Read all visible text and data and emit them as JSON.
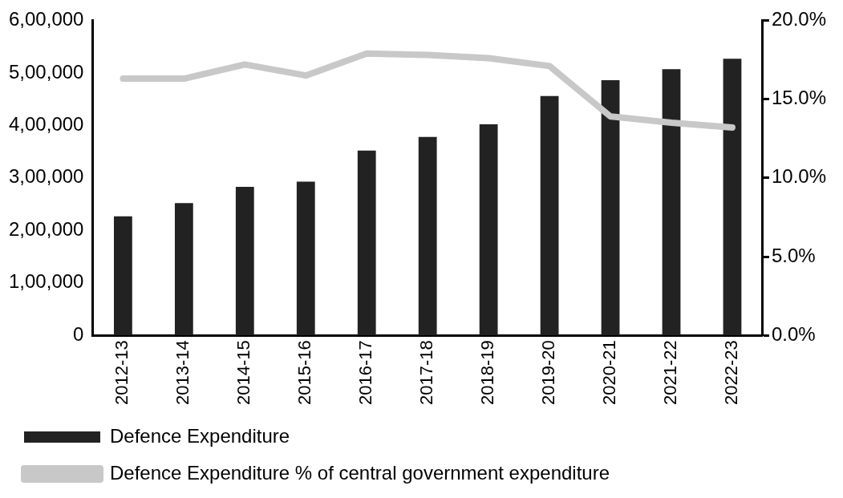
{
  "chart_data": {
    "type": "bar",
    "categories": [
      "2012-13",
      "2013-14",
      "2014-15",
      "2015-16",
      "2016-17",
      "2017-18",
      "2018-19",
      "2019-20",
      "2020-21",
      "2021-22",
      "2022-23"
    ],
    "series": [
      {
        "name": "Defence Expenditure",
        "color": "#222222",
        "values": [
          227000,
          252000,
          283000,
          293000,
          352000,
          378000,
          402000,
          456000,
          486000,
          507000,
          527000
        ]
      },
      {
        "name": "Defence Expenditure % of central government expenditure",
        "type": "line",
        "axis": "y2",
        "color": "#c8c8c8",
        "values": [
          16.3,
          16.3,
          17.2,
          16.5,
          17.9,
          17.8,
          17.6,
          17.1,
          13.9,
          13.5,
          13.2
        ]
      }
    ],
    "ylim": [
      0,
      600000
    ],
    "yticks": [
      {
        "value": 0,
        "label": "0"
      },
      {
        "value": 100000,
        "label": "1,00,000"
      },
      {
        "value": 200000,
        "label": "2,00,000"
      },
      {
        "value": 300000,
        "label": "3,00,000"
      },
      {
        "value": 400000,
        "label": "4,00,000"
      },
      {
        "value": 500000,
        "label": "5,00,000"
      },
      {
        "value": 600000,
        "label": "6,00,000"
      }
    ],
    "y2lim": [
      0,
      20
    ],
    "y2ticks": [
      {
        "value": 0,
        "label": "0.0%"
      },
      {
        "value": 5,
        "label": "5.0%"
      },
      {
        "value": 10,
        "label": "10.0%"
      },
      {
        "value": 15,
        "label": "15.0%"
      },
      {
        "value": 20,
        "label": "20.0%"
      }
    ],
    "grid": false,
    "legend": "bottom"
  }
}
